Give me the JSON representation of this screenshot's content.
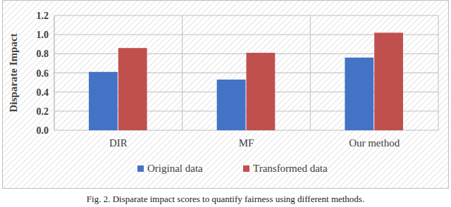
{
  "chart_data": {
    "type": "bar",
    "title": "Fig. 2. Disparate impact scores to quantify fairness using different methods.",
    "y_label": "Disparate Impact",
    "categories": [
      "DIR",
      "MF",
      "Our method"
    ],
    "series": [
      {
        "name": "Original data",
        "color": "#4472c4",
        "values": [
          0.61,
          0.53,
          0.76
        ]
      },
      {
        "name": "Transformed data",
        "color": "#c0504d",
        "values": [
          0.86,
          0.81,
          1.02
        ]
      }
    ],
    "ylim": [
      0,
      1.2
    ],
    "yticks": [
      {
        "value": 0,
        "label": "0.0"
      },
      0.2,
      0.4,
      0.6,
      0.8,
      {
        "value": 1,
        "label": "1.0"
      },
      1.2
    ],
    "grid": true,
    "legend": "bottom"
  }
}
